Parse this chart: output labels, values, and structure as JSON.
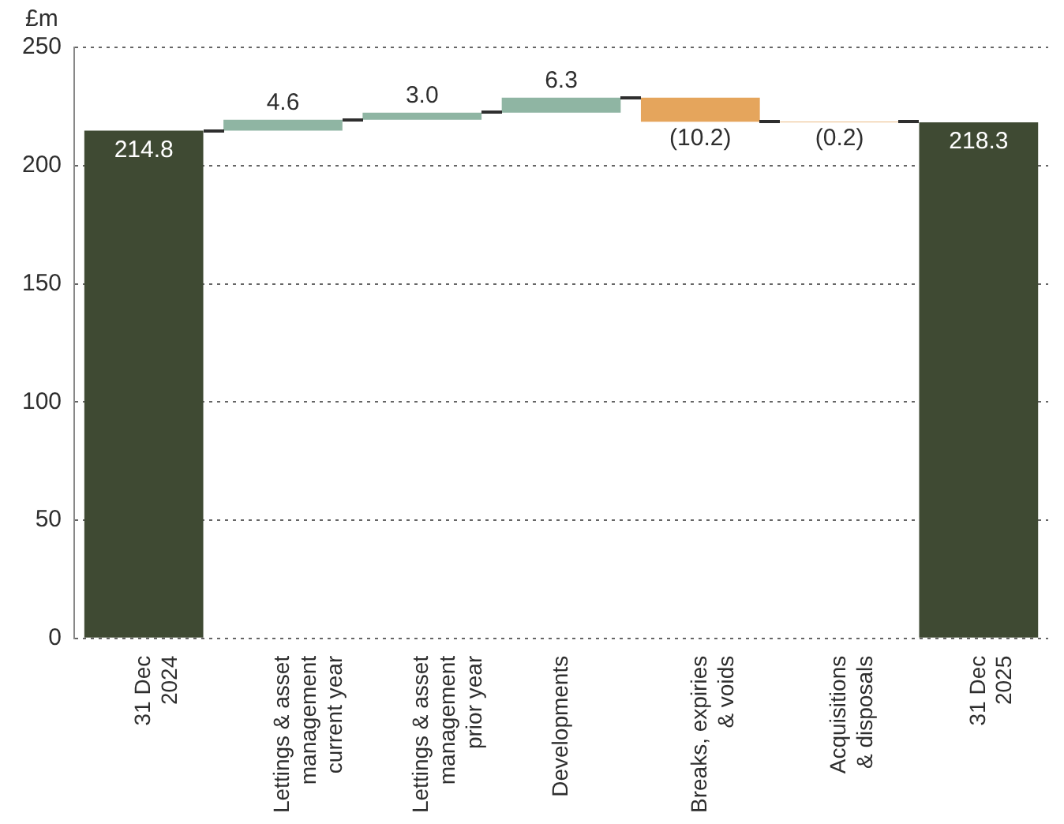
{
  "chart_data": {
    "type": "bar",
    "ylabel": "£m",
    "categories": [
      "31 Dec\n2024",
      "Lettings & asset\nmanagement\ncurrent year",
      "Lettings & asset\nmanagement\nprior year",
      "Developments",
      "Breaks, expiries\n& voids",
      "Acquisitions\n& disposals",
      "31 Dec\n2025"
    ],
    "values": [
      214.8,
      4.6,
      3.0,
      6.3,
      -10.2,
      -0.2,
      218.3
    ],
    "base": [
      0,
      214.8,
      219.4,
      222.4,
      228.7,
      218.5,
      0
    ],
    "colors": [
      "#3f4a33",
      "#8fb5a3",
      "#8fb5a3",
      "#8fb5a3",
      "#e5a55c",
      "#e5a55c",
      "#3f4a33"
    ],
    "value_labels": [
      "214.8",
      "4.6",
      "3.0",
      "6.3",
      "(10.2)",
      "(0.2)",
      "218.3"
    ],
    "ylim": [
      0,
      250
    ],
    "yticks": [
      0,
      50,
      100,
      150,
      200,
      250
    ],
    "grid": "y",
    "legend": false
  }
}
